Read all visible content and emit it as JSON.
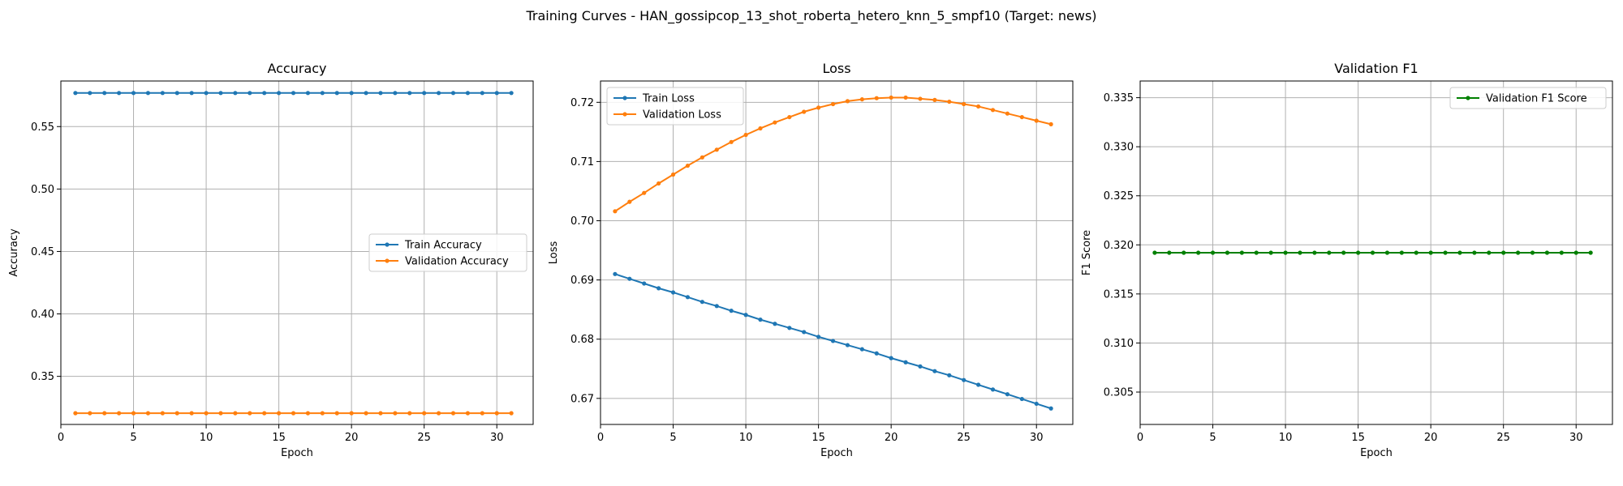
{
  "figure_title": "Training Curves - HAN_gossipcop_13_shot_roberta_hetero_knn_5_smpf10 (Target: news)",
  "chart_data": [
    {
      "type": "line",
      "title": "Accuracy",
      "xlabel": "Epoch",
      "ylabel": "Accuracy",
      "xlim": [
        0,
        32.5
      ],
      "ylim": [
        0.3115,
        0.5865
      ],
      "xticks": [
        0,
        5,
        10,
        15,
        20,
        25,
        30
      ],
      "yticks": [
        0.35,
        0.4,
        0.45,
        0.5,
        0.55
      ],
      "ytick_labels": [
        "0.35",
        "0.40",
        "0.45",
        "0.50",
        "0.55"
      ],
      "grid": true,
      "legend_position": "center-right",
      "x": [
        1,
        2,
        3,
        4,
        5,
        6,
        7,
        8,
        9,
        10,
        11,
        12,
        13,
        14,
        15,
        16,
        17,
        18,
        19,
        20,
        21,
        22,
        23,
        24,
        25,
        26,
        27,
        28,
        29,
        30,
        31
      ],
      "series": [
        {
          "name": "Train Accuracy",
          "color": "#1f77b4",
          "values": [
            0.5769,
            0.5769,
            0.5769,
            0.5769,
            0.5769,
            0.5769,
            0.5769,
            0.5769,
            0.5769,
            0.5769,
            0.5769,
            0.5769,
            0.5769,
            0.5769,
            0.5769,
            0.5769,
            0.5769,
            0.5769,
            0.5769,
            0.5769,
            0.5769,
            0.5769,
            0.5769,
            0.5769,
            0.5769,
            0.5769,
            0.5769,
            0.5769,
            0.5769,
            0.5769,
            0.5769
          ]
        },
        {
          "name": "Validation Accuracy",
          "color": "#ff7f0e",
          "values": [
            0.3205,
            0.3205,
            0.3205,
            0.3205,
            0.3205,
            0.3205,
            0.3205,
            0.3205,
            0.3205,
            0.3205,
            0.3205,
            0.3205,
            0.3205,
            0.3205,
            0.3205,
            0.3205,
            0.3205,
            0.3205,
            0.3205,
            0.3205,
            0.3205,
            0.3205,
            0.3205,
            0.3205,
            0.3205,
            0.3205,
            0.3205,
            0.3205,
            0.3205,
            0.3205,
            0.3205
          ]
        }
      ]
    },
    {
      "type": "line",
      "title": "Loss",
      "xlabel": "Epoch",
      "ylabel": "Loss",
      "xlim": [
        0,
        32.5
      ],
      "ylim": [
        0.6656,
        0.7236
      ],
      "xticks": [
        0,
        5,
        10,
        15,
        20,
        25,
        30
      ],
      "yticks": [
        0.67,
        0.68,
        0.69,
        0.7,
        0.71,
        0.72
      ],
      "ytick_labels": [
        "0.67",
        "0.68",
        "0.69",
        "0.70",
        "0.71",
        "0.72"
      ],
      "grid": true,
      "legend_position": "top-left",
      "x": [
        1,
        2,
        3,
        4,
        5,
        6,
        7,
        8,
        9,
        10,
        11,
        12,
        13,
        14,
        15,
        16,
        17,
        18,
        19,
        20,
        21,
        22,
        23,
        24,
        25,
        26,
        27,
        28,
        29,
        30,
        31
      ],
      "series": [
        {
          "name": "Train Loss",
          "color": "#1f77b4",
          "values": [
            0.691,
            0.6902,
            0.6894,
            0.6886,
            0.6879,
            0.6871,
            0.6863,
            0.6856,
            0.6848,
            0.6841,
            0.6833,
            0.6826,
            0.6819,
            0.6812,
            0.6804,
            0.6797,
            0.679,
            0.6783,
            0.6776,
            0.6768,
            0.6761,
            0.6754,
            0.6746,
            0.6739,
            0.6731,
            0.6723,
            0.6715,
            0.6707,
            0.6699,
            0.6691,
            0.6683
          ]
        },
        {
          "name": "Validation Loss",
          "color": "#ff7f0e",
          "values": [
            0.7016,
            0.7032,
            0.7047,
            0.7063,
            0.7078,
            0.7093,
            0.7107,
            0.712,
            0.7133,
            0.7145,
            0.7156,
            0.7166,
            0.7175,
            0.7184,
            0.7191,
            0.7197,
            0.7202,
            0.7205,
            0.7207,
            0.7208,
            0.7208,
            0.7206,
            0.7204,
            0.7201,
            0.7197,
            0.7193,
            0.7187,
            0.7181,
            0.7175,
            0.7169,
            0.7163
          ]
        }
      ]
    },
    {
      "type": "line",
      "title": "Validation F1",
      "xlabel": "Epoch",
      "ylabel": "F1 Score",
      "xlim": [
        0,
        32.5
      ],
      "ylim": [
        0.3017,
        0.3367
      ],
      "xticks": [
        0,
        5,
        10,
        15,
        20,
        25,
        30
      ],
      "yticks": [
        0.305,
        0.31,
        0.315,
        0.32,
        0.325,
        0.33,
        0.335
      ],
      "ytick_labels": [
        "0.305",
        "0.310",
        "0.315",
        "0.320",
        "0.325",
        "0.330",
        "0.335"
      ],
      "grid": true,
      "legend_position": "top-right",
      "x": [
        1,
        2,
        3,
        4,
        5,
        6,
        7,
        8,
        9,
        10,
        11,
        12,
        13,
        14,
        15,
        16,
        17,
        18,
        19,
        20,
        21,
        22,
        23,
        24,
        25,
        26,
        27,
        28,
        29,
        30,
        31
      ],
      "series": [
        {
          "name": "Validation F1 Score",
          "color": "#008000",
          "values": [
            0.3192,
            0.3192,
            0.3192,
            0.3192,
            0.3192,
            0.3192,
            0.3192,
            0.3192,
            0.3192,
            0.3192,
            0.3192,
            0.3192,
            0.3192,
            0.3192,
            0.3192,
            0.3192,
            0.3192,
            0.3192,
            0.3192,
            0.3192,
            0.3192,
            0.3192,
            0.3192,
            0.3192,
            0.3192,
            0.3192,
            0.3192,
            0.3192,
            0.3192,
            0.3192,
            0.3192
          ]
        }
      ]
    }
  ]
}
